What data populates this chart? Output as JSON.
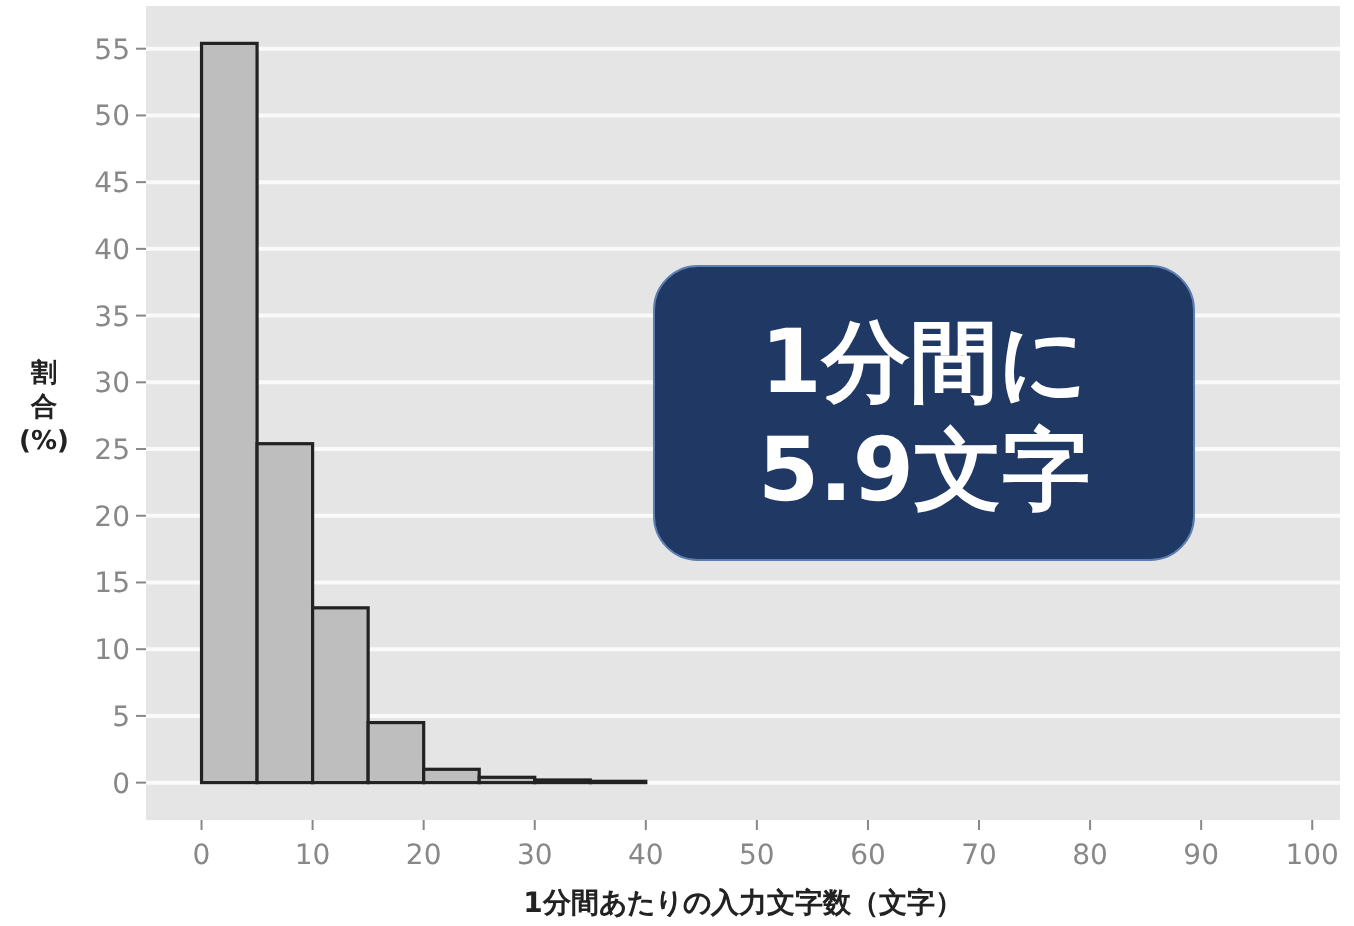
{
  "chart_data": {
    "type": "histogram",
    "bins": [
      0,
      5,
      10,
      15,
      20,
      25,
      30,
      35,
      40,
      45,
      50,
      55,
      60,
      65,
      70,
      75,
      80,
      85,
      90,
      95,
      100
    ],
    "values": [
      55.4,
      25.4,
      13.1,
      4.5,
      1.0,
      0.4,
      0.2,
      0.1,
      0,
      0,
      0,
      0,
      0,
      0,
      0,
      0,
      0,
      0,
      0,
      0
    ],
    "color": "#bebebe",
    "xlabel": "1分間あたりの入力文字数（文字）",
    "ylabel": "割合(%)",
    "xlim": [
      -5,
      102.5
    ],
    "ylim": [
      -2.8,
      58.2
    ],
    "xticks": [
      0,
      10,
      20,
      30,
      40,
      50,
      60,
      70,
      80,
      90,
      100
    ],
    "yticks": [
      0,
      5,
      10,
      15,
      20,
      25,
      30,
      35,
      40,
      45,
      50,
      55
    ],
    "grid": "y",
    "annotations": [
      "1分間に\n5.9文字"
    ]
  }
}
